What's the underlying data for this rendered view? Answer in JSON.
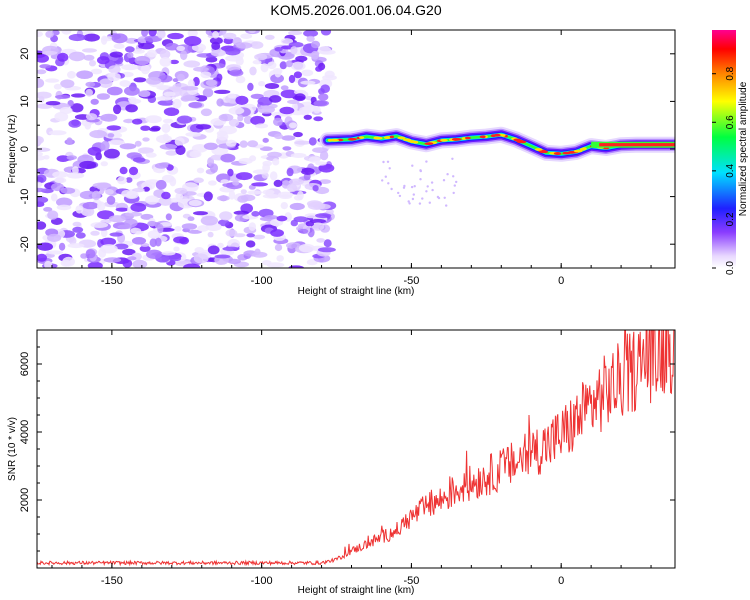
{
  "title": "KOM5.2026.001.06.04.G20",
  "chart_data": [
    {
      "type": "heatmap",
      "name": "spectrogram",
      "xlabel": "Height of straight line (km)",
      "ylabel": "Frequency (Hz)",
      "xlim": [
        -175,
        38
      ],
      "ylim": [
        -25,
        25
      ],
      "xticks": [
        -150,
        -100,
        -50,
        0
      ],
      "yticks": [
        -20,
        -10,
        0,
        10,
        20
      ],
      "noise_region_x": [
        -175,
        -77
      ],
      "signal_track": {
        "x": [
          -78,
          -70,
          -65,
          -60,
          -55,
          -50,
          -45,
          -40,
          -35,
          -30,
          -25,
          -20,
          -15,
          -10,
          -5,
          0,
          5,
          10,
          15,
          20,
          25,
          30,
          38
        ],
        "y": [
          1.8,
          2.0,
          2.6,
          2.2,
          2.7,
          1.6,
          1.0,
          1.8,
          2.0,
          2.4,
          2.6,
          3.0,
          2.0,
          0.6,
          -0.8,
          -1.0,
          -0.6,
          0.6,
          0.2,
          0.8,
          0.9,
          0.9,
          0.9
        ]
      },
      "colorbar": {
        "label": "Normalized spectral amplitude",
        "ticks": [
          "0.0",
          "0.2",
          "0.4",
          "0.6",
          "0.8"
        ],
        "range": [
          0,
          0.98
        ]
      }
    },
    {
      "type": "line",
      "name": "snr",
      "xlabel": "Height of straight line (km)",
      "ylabel": "SNR (10 * v/v)",
      "xlim": [
        -175,
        38
      ],
      "ylim": [
        0,
        7000
      ],
      "xticks": [
        -150,
        -100,
        -50,
        0
      ],
      "yticks": [
        2000,
        4000,
        6000
      ],
      "color": "#ee3333",
      "series": [
        {
          "name": "SNR",
          "x": [
            -175,
            -150,
            -120,
            -100,
            -80,
            -75,
            -70,
            -65,
            -60,
            -55,
            -50,
            -45,
            -40,
            -35,
            -30,
            -25,
            -20,
            -15,
            -10,
            -5,
            0,
            5,
            10,
            15,
            20,
            25,
            30,
            35,
            38
          ],
          "y": [
            150,
            150,
            150,
            150,
            150,
            250,
            500,
            700,
            900,
            1100,
            1500,
            1800,
            2000,
            2300,
            2500,
            2700,
            2900,
            3100,
            3400,
            3600,
            3900,
            4300,
            4800,
            5200,
            5500,
            5900,
            6200,
            6500,
            6600
          ]
        }
      ]
    }
  ]
}
